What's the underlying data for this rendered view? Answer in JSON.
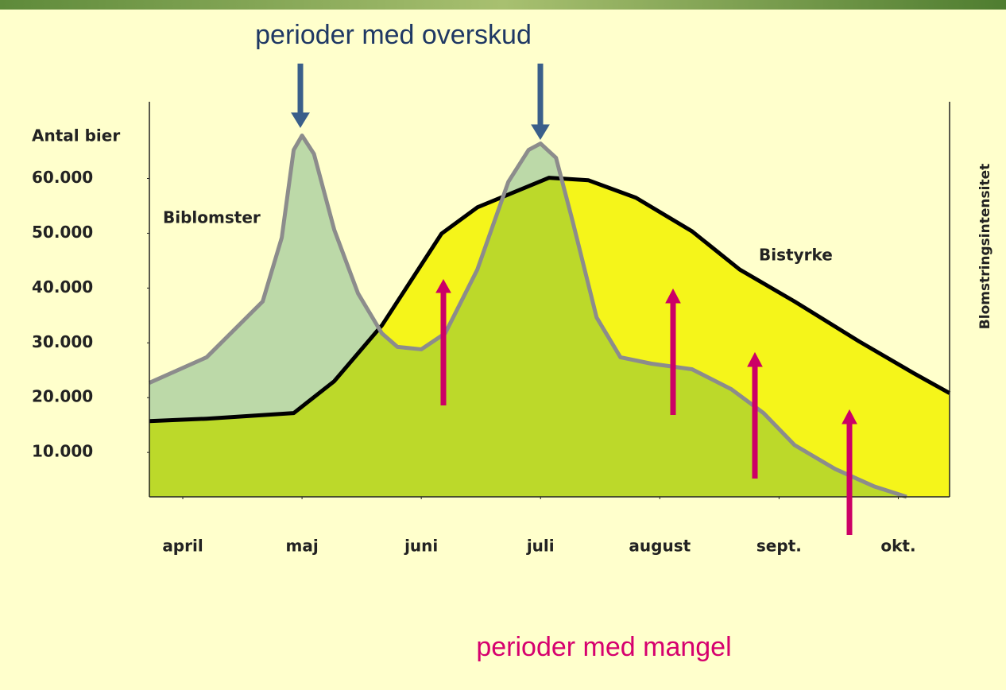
{
  "chart_data": {
    "type": "area",
    "ylabel": "Antal bier",
    "y2label": "Blomstringsintensitet",
    "annotations": [
      "perioder med overskud",
      "perioder med mangel"
    ],
    "xlim": [
      -0.28,
      6.43
    ],
    "xticks": [
      {
        "value": 0,
        "label": "april"
      },
      {
        "value": 1,
        "label": "maj"
      },
      {
        "value": 2,
        "label": "juni"
      },
      {
        "value": 3,
        "label": "juli"
      },
      {
        "value": 4,
        "label": "august"
      },
      {
        "value": 5,
        "label": "sept."
      },
      {
        "value": 6,
        "label": "okt."
      }
    ],
    "ylim": [
      1900,
      74000
    ],
    "yticks": [
      {
        "value": 10000,
        "label": "10.000"
      },
      {
        "value": 20000,
        "label": "20.000"
      },
      {
        "value": 30000,
        "label": "30.000"
      },
      {
        "value": 40000,
        "label": "40.000"
      },
      {
        "value": 50000,
        "label": "50.000"
      },
      {
        "value": 60000,
        "label": "60.000"
      }
    ],
    "series": [
      {
        "name": "Bistyrke",
        "color": "#000000",
        "fill": "#f5f51a",
        "x": [
          -0.28,
          0.2,
          0.93,
          1.27,
          1.67,
          2.17,
          2.47,
          3.07,
          3.4,
          3.8,
          4.27,
          4.67,
          5.13,
          5.67,
          6.13,
          6.43
        ],
        "values": [
          15720,
          16160,
          17180,
          23000,
          33190,
          49930,
          54730,
          60120,
          59680,
          56480,
          50360,
          43380,
          37550,
          30280,
          24450,
          20820
        ]
      },
      {
        "name": "Biblomster",
        "color": "#8c8c8c",
        "fill": "#bcd9a8",
        "overlap": "#bcd92a",
        "x": [
          -0.28,
          0.2,
          0.67,
          0.83,
          0.93,
          1,
          1.1,
          1.27,
          1.47,
          1.67,
          1.8,
          2,
          2.2,
          2.47,
          2.73,
          2.9,
          3,
          3.13,
          3.27,
          3.47,
          3.67,
          3.93,
          4.27,
          4.6,
          4.87,
          5.13,
          5.47,
          5.8,
          6.07
        ],
        "values": [
          22710,
          27370,
          37550,
          49200,
          65210,
          67830,
          64480,
          50650,
          39010,
          31730,
          29260,
          28820,
          31730,
          43380,
          59390,
          65210,
          66380,
          63760,
          52110,
          34640,
          27370,
          26200,
          25180,
          21540,
          17180,
          11350,
          6990,
          3780,
          1900
        ]
      }
    ]
  }
}
